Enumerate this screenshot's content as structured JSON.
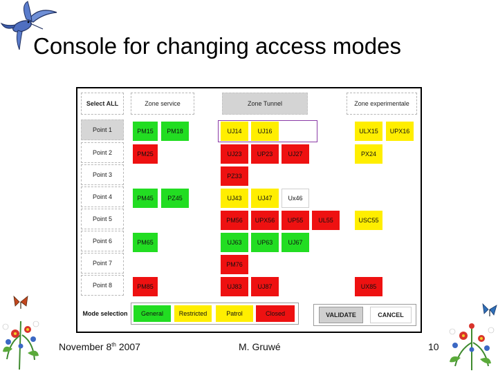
{
  "slide": {
    "title": "Console for changing access modes",
    "footer_date": "November 8",
    "footer_date_sup": "th",
    "footer_year": " 2007",
    "footer_author": "M. Gruwé",
    "footer_page": "10"
  },
  "console": {
    "headers": {
      "select_all": "Select ALL",
      "zone_service": "Zone service",
      "zone_tunnel": "Zone Tunnel",
      "zone_experimentale": "Zone experimentale"
    },
    "points": [
      "Point 1",
      "Point 2",
      "Point 3",
      "Point 4",
      "Point 5",
      "Point 6",
      "Point 7",
      "Point 8"
    ],
    "tiles": {
      "r1": [
        "PM15",
        "PM18",
        "UJ14",
        "UJ16",
        "ULX15",
        "UPX16"
      ],
      "r2": [
        "PM25",
        "UJ23",
        "UP23",
        "UJ27",
        "PX24"
      ],
      "r3": [
        "PZ33"
      ],
      "r4": [
        "PM45",
        "PZ45",
        "UJ43",
        "UJ47",
        "Ux46"
      ],
      "r5": [
        "PM56",
        "UPX56",
        "UP55",
        "UL55",
        "USC55"
      ],
      "r6": [
        "PM65",
        "UJ63",
        "UP63",
        "UJ67"
      ],
      "r7": [
        "PM76"
      ],
      "r8": [
        "PM85",
        "UJ83",
        "UJ87",
        "UX85"
      ]
    },
    "mode_selection": {
      "label": "Mode selection",
      "modes": [
        "General",
        "Restricted",
        "Patrol",
        "Closed"
      ]
    },
    "actions": {
      "validate": "VALIDATE",
      "cancel": "CANCEL"
    },
    "colors": {
      "general": "#22dd22",
      "closed": "#ee1111",
      "restricted": "#ffee00",
      "selection_frame": "#8a3aa6"
    }
  }
}
